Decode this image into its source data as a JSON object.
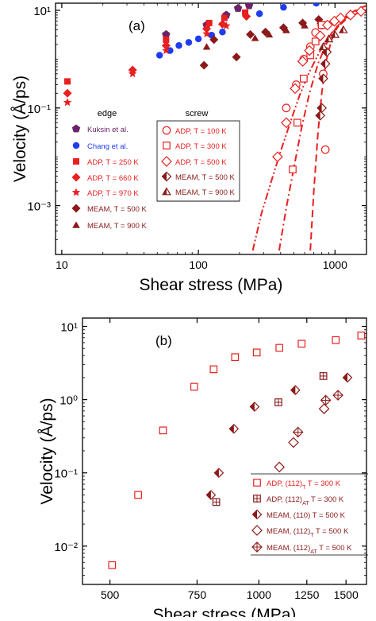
{
  "colors": {
    "dark_red": "#8b1a1a",
    "red": "#e8201f",
    "purple": "#6b2468",
    "blue": "#1f3cf0",
    "axis": "#000000"
  },
  "chart_data": [
    {
      "type": "scatter",
      "panel_label": "(a)",
      "xlabel": "Shear stress (MPa)",
      "ylabel": "Velocity (Å/ps)",
      "xscale": "log",
      "yscale": "log",
      "xlim": [
        9,
        1700
      ],
      "ylim": [
        0.0001,
        14
      ],
      "x_ticks": [
        10,
        100,
        1000
      ],
      "x_tick_labels": [
        "10",
        "100",
        "1000"
      ],
      "y_ticks": [
        10,
        0.1,
        0.001
      ],
      "y_tick_labels": [
        "10¹",
        "10⁻¹",
        "10⁻³"
      ],
      "legend_group_titles": [
        "edge",
        "screw"
      ],
      "series": [
        {
          "name": "Kuksin et al.",
          "group": "edge",
          "marker": "pentagon",
          "color": "#6b2468",
          "x": [
            58,
            115,
            160,
            195,
            235
          ],
          "y": [
            3.2,
            5.0,
            8.0,
            11.0,
            12.5
          ]
        },
        {
          "name": "Chang et al.",
          "group": "edge",
          "marker": "circle",
          "color": "#1f3cf0",
          "x": [
            52,
            62,
            72,
            85,
            100,
            125,
            150,
            280,
            420,
            730
          ],
          "y": [
            1.2,
            1.5,
            1.9,
            2.2,
            2.6,
            3.1,
            3.6,
            8.5,
            11.5,
            14.0
          ]
        },
        {
          "name": "ADP, T = 250 K",
          "group": "edge",
          "marker": "square",
          "color": "#e8201f",
          "x": [
            11,
            58,
            120,
            155,
            220
          ],
          "y": [
            0.35,
            2.5,
            5.5,
            7.0,
            9.0
          ]
        },
        {
          "name": "ADP, T = 660 K",
          "group": "edge",
          "marker": "diamond",
          "color": "#e8201f",
          "x": [
            11,
            33,
            58,
            115,
            150,
            225
          ],
          "y": [
            0.2,
            0.6,
            1.9,
            4.2,
            5.2,
            7.5
          ]
        },
        {
          "name": "ADP, T = 970 K",
          "group": "edge",
          "marker": "star",
          "color": "#e8201f",
          "x": [
            11,
            33,
            58,
            115,
            160
          ],
          "y": [
            0.13,
            0.5,
            1.5,
            3.3,
            4.8
          ]
        },
        {
          "name": "MEAM, T = 500 K",
          "group": "edge",
          "marker": "diamond",
          "color": "#8b1a1a",
          "x": [
            130,
            240,
            310,
            420,
            580,
            760
          ],
          "y": [
            2.5,
            3.2,
            3.6,
            4.4,
            5.5,
            6.5
          ]
        },
        {
          "name": "MEAM, T = 900 K",
          "group": "edge",
          "marker": "triangle",
          "color": "#8b1a1a",
          "x": [
            115,
            260,
            330,
            440,
            600,
            780
          ],
          "y": [
            1.8,
            2.7,
            3.2,
            3.9,
            4.9,
            6.0
          ]
        },
        {
          "name": "MEAM, T = 500 K",
          "group": "edge_extra",
          "marker": "diamond",
          "color": "#8b1a1a",
          "x": [
            110,
            190
          ],
          "y": [
            0.75,
            1.1
          ]
        },
        {
          "name": "ADP, T = 100 K",
          "group": "screw",
          "marker": "open-circle",
          "color": "#e8201f",
          "x": [
            440,
            520,
            590,
            660,
            720,
            800,
            850,
            820
          ],
          "y": [
            0.1,
            0.3,
            1.0,
            1.8,
            3.5,
            5.0,
            0.014,
            0.5
          ]
        },
        {
          "name": "ADP, T = 300 K",
          "group": "screw",
          "marker": "open-square",
          "color": "#e8201f",
          "x": [
            490,
            530,
            590,
            660,
            720,
            800
          ],
          "y": [
            0.0055,
            0.05,
            0.4,
            1.2,
            2.3,
            5.0
          ]
        },
        {
          "name": "ADP, T = 500 K",
          "group": "screw",
          "marker": "open-diamond",
          "color": "#e8201f",
          "x": [
            380,
            440,
            510,
            580,
            650,
            780,
            880,
            990,
            1100,
            1300,
            1550
          ],
          "y": [
            0.01,
            0.05,
            0.25,
            0.9,
            1.5,
            3.0,
            5.0,
            6.0,
            7.0,
            8.0,
            9.5
          ]
        },
        {
          "name": "MEAM, T = 500 K",
          "group": "screw",
          "marker": "half-diamond",
          "color": "#8b1a1a",
          "x": [
            780,
            800,
            820,
            850,
            870
          ],
          "y": [
            0.07,
            0.1,
            0.4,
            0.8,
            1.4
          ]
        },
        {
          "name": "MEAM, T = 900 K",
          "group": "screw",
          "marker": "half-triangle",
          "color": "#8b1a1a",
          "x": [
            820,
            900,
            1000,
            1150
          ],
          "y": [
            1.8,
            2.6,
            3.2,
            4.0
          ]
        }
      ],
      "fit_curves": [
        {
          "style": "dash-dot-dot",
          "x": [
            250,
            290,
            340,
            400,
            470,
            550,
            650,
            780,
            950,
            1200,
            1650
          ],
          "y": [
            0.00012,
            0.0007,
            0.003,
            0.013,
            0.05,
            0.18,
            0.55,
            1.5,
            3.5,
            6.5,
            10.5
          ]
        },
        {
          "style": "dash-dot",
          "x": [
            390,
            440,
            500,
            570,
            650,
            750,
            880,
            1050,
            1300,
            1650
          ],
          "y": [
            0.00012,
            0.0009,
            0.006,
            0.04,
            0.2,
            0.8,
            2.3,
            5.0,
            8.5,
            12.0
          ]
        },
        {
          "style": "dash",
          "x": [
            660,
            700,
            750,
            800,
            860,
            940,
            1050,
            1200,
            1450,
            1700
          ],
          "y": [
            0.00012,
            0.002,
            0.03,
            0.2,
            0.9,
            2.4,
            4.8,
            7.5,
            10.5,
            12.5
          ]
        }
      ]
    },
    {
      "type": "scatter",
      "panel_label": "(b)",
      "xlabel": "Shear stress (MPa)",
      "ylabel": "Velocity (Å/ps)",
      "xscale": "log",
      "yscale": "log",
      "xlim": [
        440,
        1650
      ],
      "ylim": [
        0.003,
        13
      ],
      "x_ticks": [
        500,
        750,
        1000,
        1250,
        1500
      ],
      "x_tick_labels": [
        "500",
        "750",
        "1000",
        "1250",
        "1500"
      ],
      "y_ticks": [
        10,
        1,
        0.1,
        0.01
      ],
      "y_tick_labels": [
        "10¹",
        "10⁰",
        "10⁻¹",
        "10⁻²"
      ],
      "series": [
        {
          "name": "ADP, (112)",
          "subscript": "T",
          "suffix": " T = 300 K",
          "marker": "open-square",
          "color": "#e8201f",
          "x": [
            505,
            570,
            640,
            740,
            810,
            895,
            990,
            1100,
            1220,
            1430,
            1610
          ],
          "y": [
            0.0055,
            0.05,
            0.38,
            1.5,
            2.6,
            3.8,
            4.4,
            5.1,
            5.8,
            6.5,
            7.5
          ]
        },
        {
          "name": "ADP, (112)",
          "subscript": "AT",
          "suffix": " T = 300 K",
          "marker": "cross-square",
          "color": "#8b1a1a",
          "x": [
            820,
            1095,
            1350
          ],
          "y": [
            0.04,
            0.92,
            2.1
          ]
        },
        {
          "name": "MEAM, (110)",
          "subscript": "",
          "suffix": " T = 500 K",
          "marker": "half-diamond",
          "color": "#8b1a1a",
          "x": [
            800,
            830,
            890,
            980,
            1185,
            1510
          ],
          "y": [
            0.05,
            0.1,
            0.4,
            0.8,
            1.35,
            2.0
          ]
        },
        {
          "name": "MEAM, (112)",
          "subscript": "T",
          "suffix": " T = 500 K",
          "marker": "open-diamond",
          "color": "#8b1a1a",
          "x": [
            1100,
            1175,
            1355
          ],
          "y": [
            0.12,
            0.26,
            0.75
          ]
        },
        {
          "name": "MEAM, (112)",
          "subscript": "AT",
          "suffix": " T = 500 K",
          "marker": "cross-diamond",
          "color": "#8b1a1a",
          "x": [
            1200,
            1365,
            1445
          ],
          "y": [
            0.36,
            0.98,
            1.15
          ]
        }
      ]
    }
  ]
}
